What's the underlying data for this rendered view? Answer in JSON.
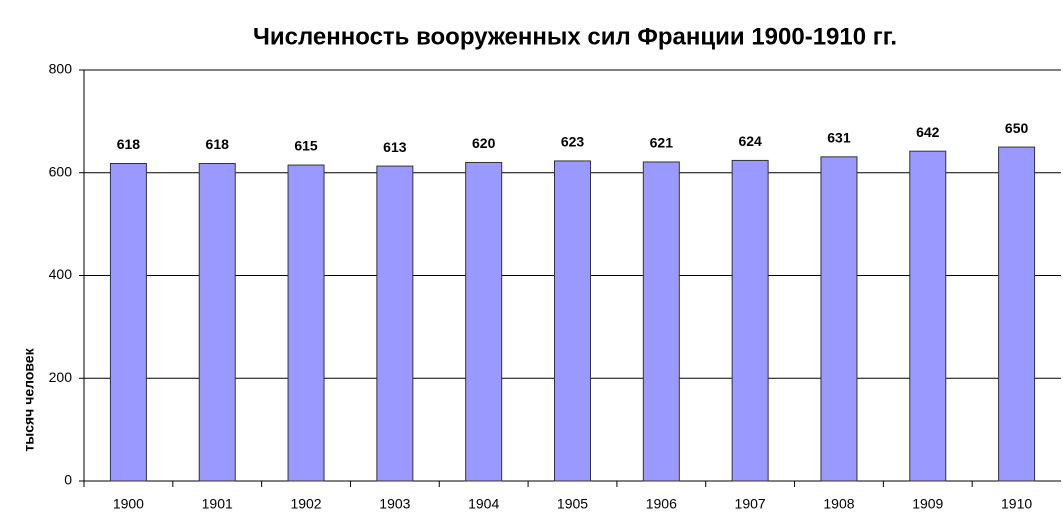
{
  "chart_data": {
    "type": "bar",
    "title": "Численность вооруженных сил Франции 1900-1910 гг.",
    "y_label": "тысяч человек",
    "categories": [
      "1900",
      "1901",
      "1902",
      "1903",
      "1904",
      "1905",
      "1906",
      "1907",
      "1908",
      "1909",
      "1910"
    ],
    "values": [
      618,
      618,
      615,
      613,
      620,
      623,
      621,
      624,
      631,
      642,
      650
    ],
    "color": "#9999ff",
    "ylim": [
      0,
      800
    ],
    "yticks": [
      0,
      200,
      400,
      600,
      800
    ],
    "grid": true
  }
}
